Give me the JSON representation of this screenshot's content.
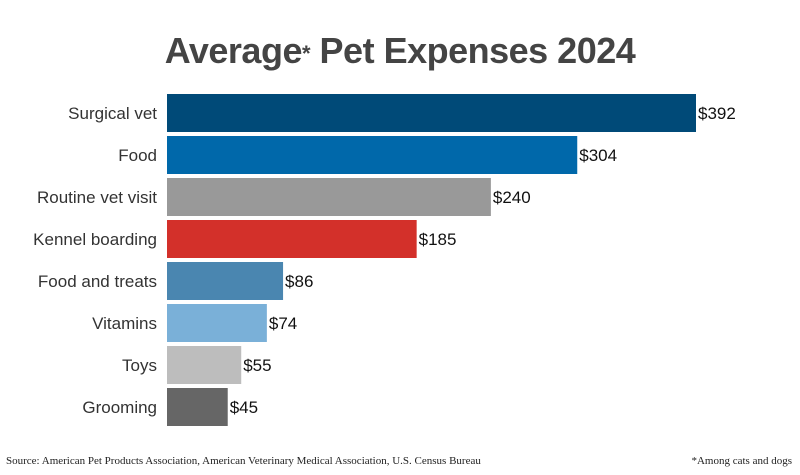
{
  "chart_data": {
    "type": "bar",
    "orientation": "horizontal",
    "title": "Average* Pet Expenses 2024",
    "title_parts": {
      "main": "Average",
      "asterisk": "*",
      "rest": "Pet Expenses 2024"
    },
    "categories": [
      "Surgical vet",
      "Food",
      "Routine vet visit",
      "Kennel boarding",
      "Food and treats",
      "Vitamins",
      "Toys",
      "Grooming"
    ],
    "values": [
      392,
      304,
      240,
      185,
      86,
      74,
      55,
      45
    ],
    "value_labels": [
      "$392",
      "$304",
      "$240",
      "$185",
      "$86",
      "$74",
      "$55",
      "$45"
    ],
    "colors": [
      "#004a78",
      "#0068aa",
      "#999999",
      "#d3302a",
      "#4a86b0",
      "#7ab0d8",
      "#bdbdbd",
      "#666666"
    ],
    "xlim": [
      0,
      392
    ],
    "grid": false,
    "legend": "none",
    "xlabel": "",
    "ylabel": ""
  },
  "footer": {
    "source": "Source: American Pet Products Association, American Veterinary Medical Association, U.S. Census Bureau",
    "note": "*Among cats and dogs"
  }
}
